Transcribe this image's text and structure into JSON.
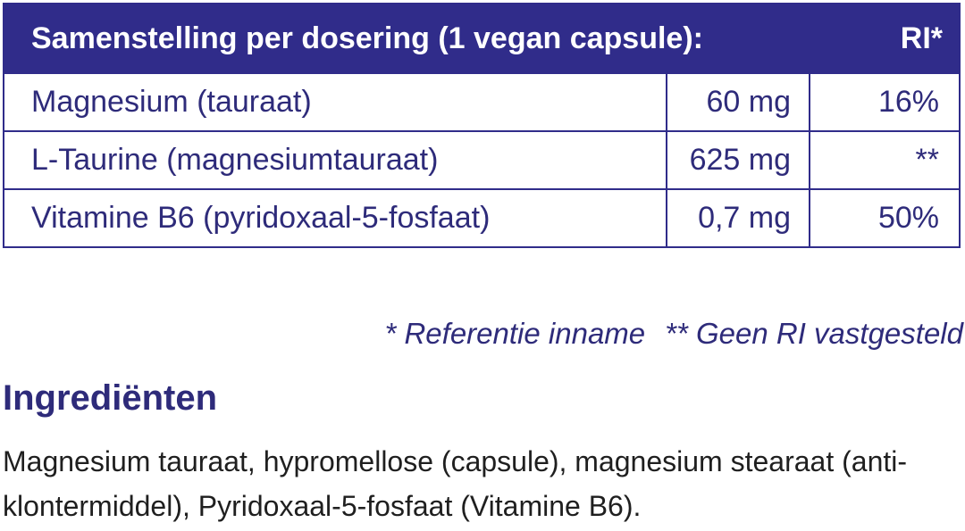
{
  "table": {
    "header_label": "Samenstelling per dosering (1 vegan capsule):",
    "header_ri": "RI*",
    "rows": [
      {
        "name": "Magnesium (tauraat)",
        "amount": "60 mg",
        "ri": "16%"
      },
      {
        "name": "L-Taurine (magnesiumtauraat)",
        "amount": "625 mg",
        "ri": "**"
      },
      {
        "name": "Vitamine B6 (pyridoxaal-5-fosfaat)",
        "amount": "0,7 mg",
        "ri": "50%"
      }
    ]
  },
  "footnotes": {
    "ri_note": "* Referentie inname",
    "no_ri_note": "** Geen RI vastgesteld"
  },
  "ingredients": {
    "title": "Ingrediënten",
    "text": "Magnesium tauraat, hypromellose (capsule), magnesium stearaat (anti-klontermiddel), Pyridoxaal-5-fosfaat (Vitamine B6)."
  },
  "colors": {
    "brand_navy": "#302c8a",
    "text_navy": "#2e2b7a"
  }
}
